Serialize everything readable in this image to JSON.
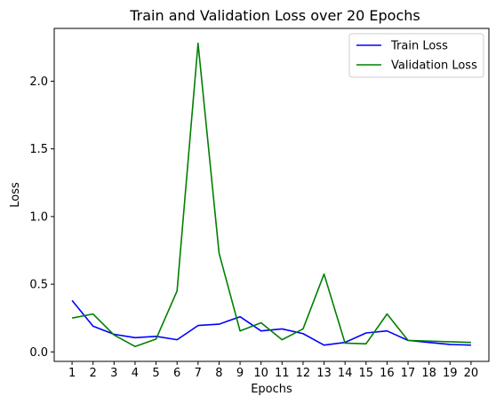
{
  "chart_data": {
    "type": "line",
    "title": "Train and Validation Loss over 20 Epochs",
    "xlabel": "Epochs",
    "ylabel": "Loss",
    "x": [
      1,
      2,
      3,
      4,
      5,
      6,
      7,
      8,
      9,
      10,
      11,
      12,
      13,
      14,
      15,
      16,
      17,
      18,
      19,
      20
    ],
    "x_ticks": [
      "1",
      "2",
      "3",
      "4",
      "5",
      "6",
      "7",
      "8",
      "9",
      "10",
      "11",
      "12",
      "13",
      "14",
      "15",
      "16",
      "17",
      "18",
      "19",
      "20"
    ],
    "y_ticks": [
      "0.0",
      "0.5",
      "1.0",
      "1.5",
      "2.0"
    ],
    "y_tick_values": [
      0.0,
      0.5,
      1.0,
      1.5,
      2.0
    ],
    "xlim": [
      0.15,
      20.85
    ],
    "ylim": [
      -0.07,
      2.39
    ],
    "grid": false,
    "legend_position": "top-right",
    "series": [
      {
        "name": "Train Loss",
        "color": "#0000ff",
        "values": [
          0.38,
          0.19,
          0.13,
          0.105,
          0.115,
          0.09,
          0.195,
          0.205,
          0.26,
          0.155,
          0.17,
          0.135,
          0.05,
          0.07,
          0.14,
          0.155,
          0.085,
          0.07,
          0.055,
          0.05
        ]
      },
      {
        "name": "Validation Loss",
        "color": "#008000",
        "values": [
          0.25,
          0.28,
          0.125,
          0.04,
          0.095,
          0.45,
          2.28,
          0.73,
          0.155,
          0.215,
          0.09,
          0.17,
          0.575,
          0.065,
          0.06,
          0.28,
          0.085,
          0.08,
          0.075,
          0.07
        ]
      }
    ]
  }
}
